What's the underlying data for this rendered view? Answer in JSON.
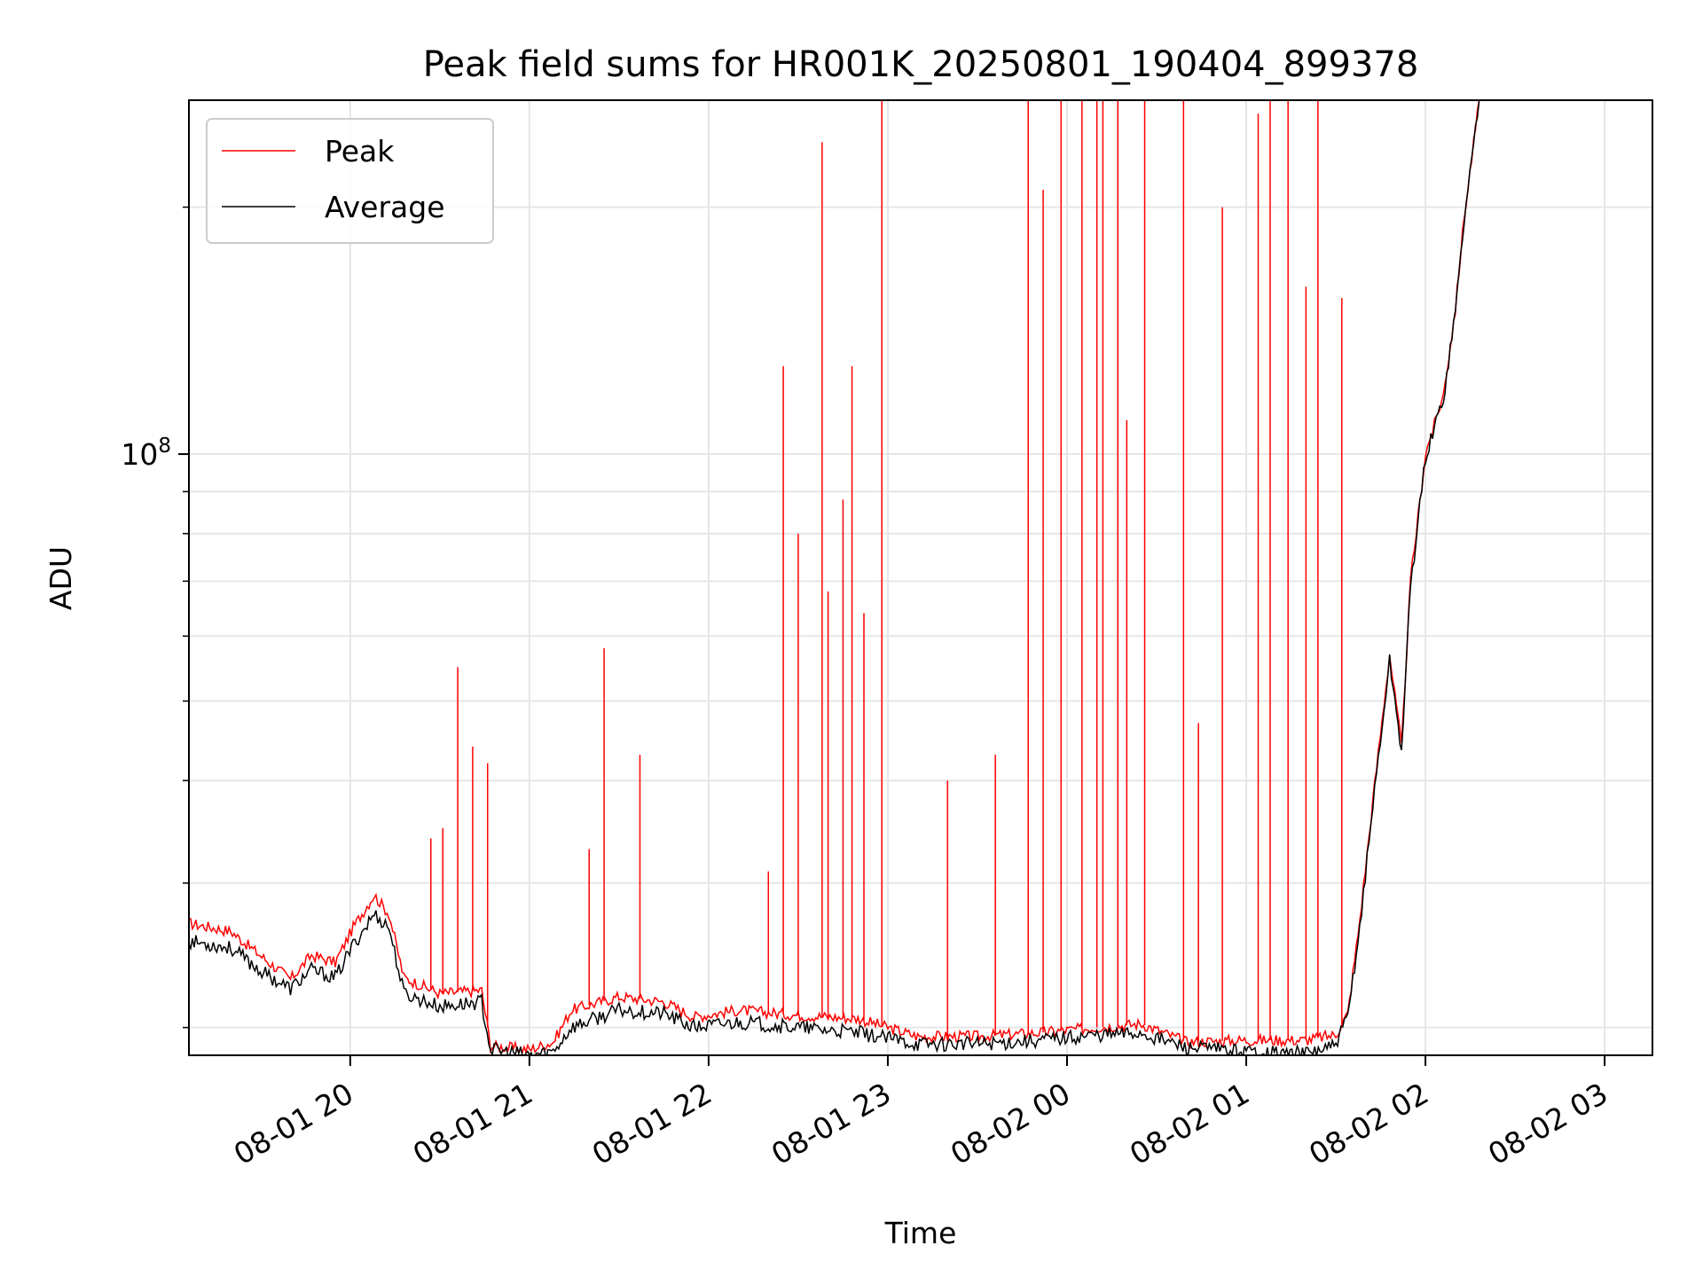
{
  "chart_data": {
    "type": "line",
    "title": "Peak field sums for HR001K_20250801_190404_899378",
    "xlabel": "Time",
    "ylabel": "ADU",
    "yscale": "log",
    "ylim": [
      18500000,
      270000000
    ],
    "y_major_ticks": [
      {
        "value": 100000000,
        "label": "10",
        "exponent": "8"
      }
    ],
    "y_minor_ticks": [
      20000000,
      30000000,
      40000000,
      50000000,
      60000000,
      70000000,
      80000000,
      90000000,
      200000000
    ],
    "xlim": [
      "2025-08-01T19:06",
      "2025-08-02T03:16"
    ],
    "x_ticks": [
      {
        "value": "2025-08-01T20:00",
        "label": "08-01 20"
      },
      {
        "value": "2025-08-01T21:00",
        "label": "08-01 21"
      },
      {
        "value": "2025-08-01T22:00",
        "label": "08-01 22"
      },
      {
        "value": "2025-08-01T23:00",
        "label": "08-01 23"
      },
      {
        "value": "2025-08-02T00:00",
        "label": "08-02 00"
      },
      {
        "value": "2025-08-02T01:00",
        "label": "08-02 01"
      },
      {
        "value": "2025-08-02T02:00",
        "label": "08-02 02"
      },
      {
        "value": "2025-08-02T03:00",
        "label": "08-02 03"
      }
    ],
    "grid": true,
    "legend_position": "upper-left",
    "series": [
      {
        "name": "Peak",
        "color": "#ff0000",
        "x": [
          "2025-08-01T19:06",
          "2025-08-01T19:20",
          "2025-08-01T19:31",
          "2025-08-01T19:40",
          "2025-08-01T19:47",
          "2025-08-01T19:55",
          "2025-08-01T20:01",
          "2025-08-01T20:08",
          "2025-08-01T20:13",
          "2025-08-01T20:18",
          "2025-08-01T20:30",
          "2025-08-01T20:44",
          "2025-08-01T20:47",
          "2025-08-01T21:00",
          "2025-08-01T21:08",
          "2025-08-01T21:14",
          "2025-08-01T21:30",
          "2025-08-01T21:45",
          "2025-08-01T21:55",
          "2025-08-01T22:10",
          "2025-08-01T22:30",
          "2025-08-01T22:50",
          "2025-08-01T23:10",
          "2025-08-01T23:30",
          "2025-08-01T23:50",
          "2025-08-02T00:10",
          "2025-08-02T00:25",
          "2025-08-02T00:40",
          "2025-08-02T01:00",
          "2025-08-02T01:20",
          "2025-08-02T01:30",
          "2025-08-02T01:34",
          "2025-08-02T01:38",
          "2025-08-02T01:43",
          "2025-08-02T01:48",
          "2025-08-02T01:52",
          "2025-08-02T01:55",
          "2025-08-02T02:00",
          "2025-08-02T02:06",
          "2025-08-02T02:10",
          "2025-08-02T02:13",
          "2025-08-02T02:18"
        ],
        "y": [
          26800000,
          26200000,
          24300000,
          22900000,
          24500000,
          24000000,
          26500000,
          29000000,
          27500000,
          23000000,
          22000000,
          22200000,
          19000000,
          18800000,
          19200000,
          21000000,
          21800000,
          21500000,
          20600000,
          21000000,
          20700000,
          20500000,
          19500000,
          19500000,
          19700000,
          20000000,
          20200000,
          19200000,
          19300000,
          19300000,
          19600000,
          20800000,
          27000000,
          39500000,
          57000000,
          44000000,
          70000000,
          100000000,
          118000000,
          150000000,
          195000000,
          270000000
        ],
        "spikes": [
          {
            "x": "2025-08-01T20:27",
            "y": 34000000
          },
          {
            "x": "2025-08-01T20:31",
            "y": 35000000
          },
          {
            "x": "2025-08-01T20:36",
            "y": 55000000
          },
          {
            "x": "2025-08-01T20:41",
            "y": 44000000
          },
          {
            "x": "2025-08-01T20:46",
            "y": 42000000
          },
          {
            "x": "2025-08-01T21:20",
            "y": 33000000
          },
          {
            "x": "2025-08-01T21:25",
            "y": 58000000
          },
          {
            "x": "2025-08-01T21:37",
            "y": 43000000
          },
          {
            "x": "2025-08-01T22:20",
            "y": 31000000
          },
          {
            "x": "2025-08-01T22:25",
            "y": 128000000
          },
          {
            "x": "2025-08-01T22:30",
            "y": 80000000
          },
          {
            "x": "2025-08-01T22:38",
            "y": 240000000
          },
          {
            "x": "2025-08-01T22:40",
            "y": 68000000
          },
          {
            "x": "2025-08-01T22:45",
            "y": 88000000
          },
          {
            "x": "2025-08-01T22:48",
            "y": 128000000
          },
          {
            "x": "2025-08-01T22:52",
            "y": 64000000
          },
          {
            "x": "2025-08-01T22:58",
            "y": 330000000
          },
          {
            "x": "2025-08-01T23:20",
            "y": 40000000
          },
          {
            "x": "2025-08-01T23:36",
            "y": 43000000
          },
          {
            "x": "2025-08-01T23:47",
            "y": 330000000
          },
          {
            "x": "2025-08-01T23:52",
            "y": 210000000
          },
          {
            "x": "2025-08-01T23:58",
            "y": 400000000
          },
          {
            "x": "2025-08-02T00:05",
            "y": 430000000
          },
          {
            "x": "2025-08-02T00:10",
            "y": 330000000
          },
          {
            "x": "2025-08-02T00:12",
            "y": 410000000
          },
          {
            "x": "2025-08-02T00:17",
            "y": 280000000
          },
          {
            "x": "2025-08-02T00:20",
            "y": 110000000
          },
          {
            "x": "2025-08-02T00:26",
            "y": 280000000
          },
          {
            "x": "2025-08-02T00:39",
            "y": 410000000
          },
          {
            "x": "2025-08-02T00:44",
            "y": 47000000
          },
          {
            "x": "2025-08-02T00:52",
            "y": 200000000
          },
          {
            "x": "2025-08-02T01:04",
            "y": 260000000
          },
          {
            "x": "2025-08-02T01:08",
            "y": 400000000
          },
          {
            "x": "2025-08-02T01:14",
            "y": 420000000
          },
          {
            "x": "2025-08-02T01:20",
            "y": 160000000
          },
          {
            "x": "2025-08-02T01:24",
            "y": 400000000
          },
          {
            "x": "2025-08-02T01:32",
            "y": 155000000
          }
        ]
      },
      {
        "name": "Average",
        "color": "#000000",
        "x": [
          "2025-08-01T19:06",
          "2025-08-01T19:20",
          "2025-08-01T19:31",
          "2025-08-01T19:40",
          "2025-08-01T19:47",
          "2025-08-01T19:55",
          "2025-08-01T20:01",
          "2025-08-01T20:08",
          "2025-08-01T20:13",
          "2025-08-01T20:18",
          "2025-08-01T20:30",
          "2025-08-01T20:44",
          "2025-08-01T20:47",
          "2025-08-01T21:00",
          "2025-08-01T21:08",
          "2025-08-01T21:14",
          "2025-08-01T21:30",
          "2025-08-01T21:45",
          "2025-08-01T21:55",
          "2025-08-01T22:10",
          "2025-08-01T22:30",
          "2025-08-01T22:50",
          "2025-08-01T23:10",
          "2025-08-01T23:30",
          "2025-08-01T23:50",
          "2025-08-02T00:10",
          "2025-08-02T00:25",
          "2025-08-02T00:40",
          "2025-08-02T01:00",
          "2025-08-02T01:20",
          "2025-08-02T01:30",
          "2025-08-02T01:34",
          "2025-08-02T01:38",
          "2025-08-02T01:43",
          "2025-08-02T01:48",
          "2025-08-02T01:52",
          "2025-08-02T01:55",
          "2025-08-02T02:00",
          "2025-08-02T02:06",
          "2025-08-02T02:10",
          "2025-08-02T02:13",
          "2025-08-02T02:18"
        ],
        "y": [
          25500000,
          25000000,
          23300000,
          22300000,
          23500000,
          23000000,
          25200000,
          27500000,
          26500000,
          22000000,
          21200000,
          21500000,
          18800000,
          18500000,
          18700000,
          20000000,
          21000000,
          20800000,
          20000000,
          20300000,
          20000000,
          19700000,
          19100000,
          19100000,
          19300000,
          19600000,
          19700000,
          18900000,
          18700000,
          18600000,
          19000000,
          20600000,
          26500000,
          39000000,
          56000000,
          43500000,
          69000000,
          99000000,
          117000000,
          149000000,
          194000000,
          270000000
        ]
      }
    ]
  }
}
